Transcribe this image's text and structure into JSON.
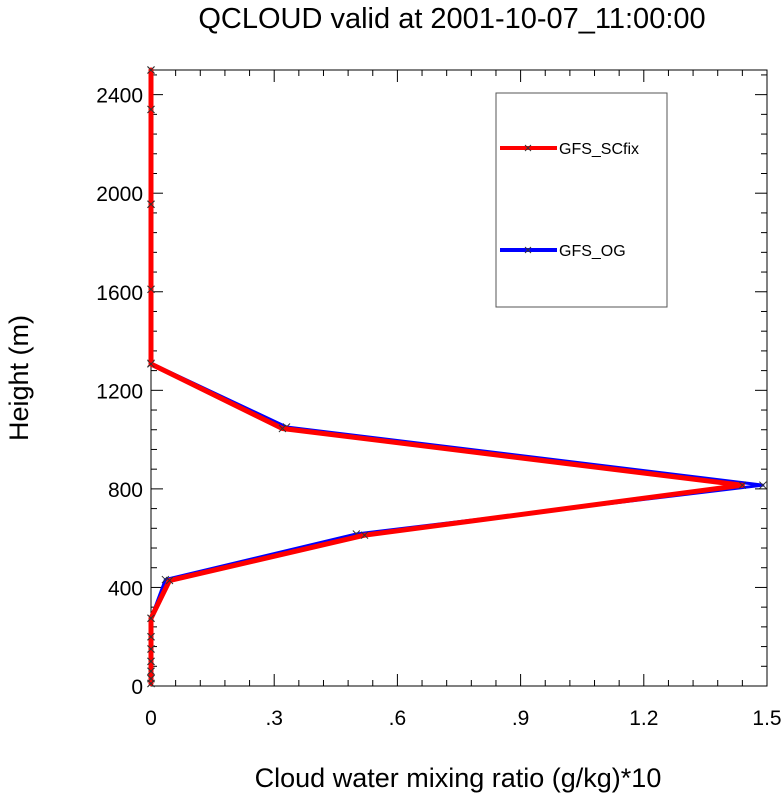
{
  "chart_data": {
    "type": "line",
    "title": "QCLOUD valid at 2001-10-07_11:00:00",
    "xlabel": "Cloud water mixing ratio (g/kg)*10",
    "ylabel": "Height (m)",
    "xlim": [
      0,
      1.5
    ],
    "ylim": [
      0,
      2500
    ],
    "xticks": [
      0,
      0.3,
      0.6,
      0.9,
      1.2,
      1.5
    ],
    "xtick_labels": [
      "0",
      ".3",
      ".6",
      ".9",
      "1.2",
      "1.5"
    ],
    "yticks": [
      0,
      400,
      800,
      1200,
      1600,
      2000,
      2400
    ],
    "ytick_labels": [
      "0",
      "400",
      "800",
      "1200",
      "1600",
      "2000",
      "2400"
    ],
    "grid": false,
    "legend_position": "top-right",
    "series": [
      {
        "name": "GFS_OG",
        "color": "#0000ff",
        "points": [
          {
            "x": 0,
            "y": 10
          },
          {
            "x": 0,
            "y": 30
          },
          {
            "x": 0,
            "y": 60
          },
          {
            "x": 0,
            "y": 100
          },
          {
            "x": 0,
            "y": 150
          },
          {
            "x": 0,
            "y": 200
          },
          {
            "x": 0,
            "y": 275
          },
          {
            "x": 0.035,
            "y": 432
          },
          {
            "x": 0.5,
            "y": 617
          },
          {
            "x": 1.49,
            "y": 815
          },
          {
            "x": 0.33,
            "y": 1051
          },
          {
            "x": 0,
            "y": 1310
          },
          {
            "x": 0,
            "y": 1610
          },
          {
            "x": 0,
            "y": 1955
          },
          {
            "x": 0,
            "y": 2340
          },
          {
            "x": 0,
            "y": 2500
          }
        ]
      },
      {
        "name": "GFS_SCfix",
        "color": "#ff0000",
        "points": [
          {
            "x": 0,
            "y": 10
          },
          {
            "x": 0,
            "y": 30
          },
          {
            "x": 0,
            "y": 60
          },
          {
            "x": 0,
            "y": 100
          },
          {
            "x": 0,
            "y": 150
          },
          {
            "x": 0,
            "y": 200
          },
          {
            "x": 0,
            "y": 275
          },
          {
            "x": 0.045,
            "y": 428
          },
          {
            "x": 0.52,
            "y": 612
          },
          {
            "x": 1.44,
            "y": 815
          },
          {
            "x": 0.32,
            "y": 1045
          },
          {
            "x": 0,
            "y": 1307
          },
          {
            "x": 0,
            "y": 1610
          },
          {
            "x": 0,
            "y": 1955
          },
          {
            "x": 0,
            "y": 2340
          },
          {
            "x": 0,
            "y": 2500
          }
        ]
      }
    ],
    "legend": [
      {
        "label": "GFS_SCfix",
        "color": "#ff0000"
      },
      {
        "label": "GFS_OG",
        "color": "#0000ff"
      }
    ]
  }
}
